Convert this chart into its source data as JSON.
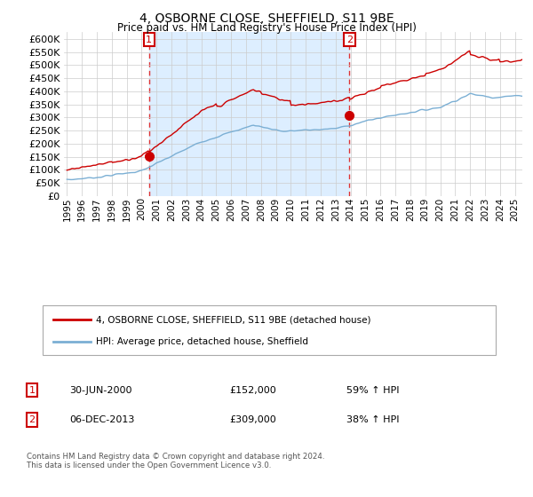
{
  "title": "4, OSBORNE CLOSE, SHEFFIELD, S11 9BE",
  "subtitle": "Price paid vs. HM Land Registry's House Price Index (HPI)",
  "ytick_values": [
    0,
    50000,
    100000,
    150000,
    200000,
    250000,
    300000,
    350000,
    400000,
    450000,
    500000,
    550000,
    600000
  ],
  "ylim": [
    0,
    625000
  ],
  "xlim_start": 1994.8,
  "xlim_end": 2025.5,
  "xtick_years": [
    1995,
    1996,
    1997,
    1998,
    1999,
    2000,
    2001,
    2002,
    2003,
    2004,
    2005,
    2006,
    2007,
    2008,
    2009,
    2010,
    2011,
    2012,
    2013,
    2014,
    2015,
    2016,
    2017,
    2018,
    2019,
    2020,
    2021,
    2022,
    2023,
    2024,
    2025
  ],
  "hpi_color": "#7bafd4",
  "price_color": "#cc0000",
  "marker_color": "#cc0000",
  "vline_color": "#dd3333",
  "annotation_box_color": "#cc0000",
  "shade_color": "#ddeeff",
  "transaction1": {
    "date_num": 2000.5,
    "price": 152000,
    "label": "1",
    "pct": "59% ↑ HPI",
    "date_str": "30-JUN-2000",
    "price_str": "£152,000"
  },
  "transaction2": {
    "date_num": 2013.92,
    "price": 309000,
    "label": "2",
    "pct": "38% ↑ HPI",
    "date_str": "06-DEC-2013",
    "price_str": "£309,000"
  },
  "legend_line1": "4, OSBORNE CLOSE, SHEFFIELD, S11 9BE (detached house)",
  "legend_line2": "HPI: Average price, detached house, Sheffield",
  "footer": "Contains HM Land Registry data © Crown copyright and database right 2024.\nThis data is licensed under the Open Government Licence v3.0.",
  "background_color": "#ffffff",
  "grid_color": "#cccccc"
}
